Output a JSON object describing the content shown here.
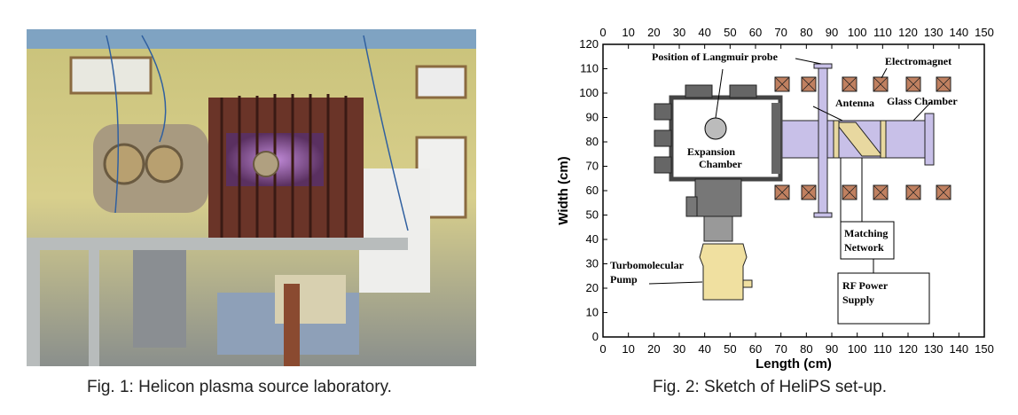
{
  "figure1": {
    "caption": "Fig. 1: Helicon plasma source laboratory."
  },
  "figure2": {
    "caption": "Fig. 2: Sketch of HeliPS set-up.",
    "xlabel": "Length (cm)",
    "ylabel": "Width (cm)",
    "xticks": [
      0,
      10,
      20,
      30,
      40,
      50,
      60,
      70,
      80,
      90,
      100,
      110,
      120,
      130,
      140,
      150
    ],
    "yticks": [
      0,
      10,
      20,
      30,
      40,
      50,
      60,
      70,
      80,
      90,
      100,
      110,
      120
    ],
    "labels": {
      "probe": "Position of Langmuir probe",
      "electromagnet": "Electromagnet",
      "antenna": "Antenna",
      "glass_chamber": "Glass Chamber",
      "expansion_chamber": [
        "Expansion",
        "Chamber"
      ],
      "matching_network": [
        "Matching",
        "Network"
      ],
      "rf_supply": [
        "RF Power",
        "Supply"
      ],
      "pump": [
        "Turbomolecular",
        "Pump"
      ]
    }
  }
}
